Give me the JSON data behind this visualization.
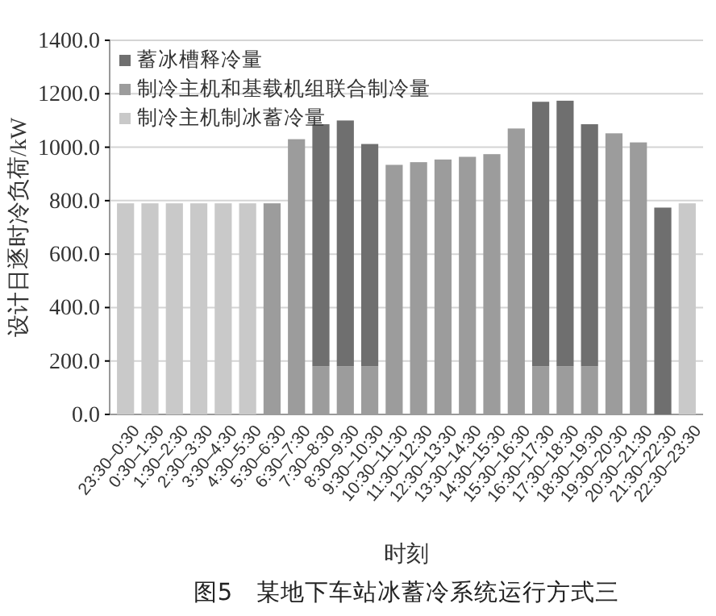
{
  "chart_data": {
    "type": "bar",
    "stacked": true,
    "title": "图5　某地下车站冰蓄冷系统运行方式三",
    "xlabel": "时刻",
    "ylabel": "设计日逐时冷负荷/kW",
    "categories": [
      "23:30–0:30",
      "0:30–1:30",
      "1:30–2:30",
      "2:30–3:30",
      "3:30–4:30",
      "4:30–5:30",
      "5:30–6:30",
      "6:30–7:30",
      "7:30–8:30",
      "8:30–9:30",
      "9:30–10:30",
      "10:30–11:30",
      "11:30–12:30",
      "12:30–13:30",
      "13:30–14:30",
      "14:30–15:30",
      "15:30–16:30",
      "16:30–17:30",
      "17:30–18:30",
      "18:30–19:30",
      "19:30–20:30",
      "20:30–21:30",
      "21:30–22:30",
      "22:30–23:30"
    ],
    "series": [
      {
        "name": "制冷主机制冰蓄冷量",
        "color": "#c9c9c9",
        "values": [
          790,
          790,
          790,
          790,
          790,
          790,
          null,
          null,
          null,
          null,
          null,
          null,
          null,
          null,
          null,
          null,
          null,
          null,
          null,
          null,
          null,
          null,
          null,
          790
        ]
      },
      {
        "name": "制冷主机和基载机组联合制冷量",
        "color": "#9c9c9c",
        "values": [
          null,
          null,
          null,
          null,
          null,
          null,
          790,
          1030,
          180,
          180,
          180,
          934,
          944,
          954,
          964,
          974,
          1070,
          180,
          180,
          180,
          1052,
          1018,
          null,
          null
        ]
      },
      {
        "name": "蓄冰槽释冷量",
        "color": "#6f6f6f",
        "values": [
          null,
          null,
          null,
          null,
          null,
          null,
          null,
          null,
          906,
          920,
          832,
          null,
          null,
          null,
          null,
          null,
          null,
          990,
          994,
          906,
          null,
          null,
          774,
          null
        ]
      }
    ],
    "ylim": [
      0,
      1400
    ],
    "yticks": [
      {
        "value": 0,
        "label": "0.0"
      },
      {
        "value": 200,
        "label": "200.0"
      },
      {
        "value": 400,
        "label": "400.0"
      },
      {
        "value": 600,
        "label": "600.0"
      },
      {
        "value": 800,
        "label": "800.0"
      },
      {
        "value": 1000,
        "label": "1000.0"
      },
      {
        "value": 1200,
        "label": "1200.0"
      },
      {
        "value": 1400,
        "label": "1400.0"
      }
    ],
    "grid": "y",
    "legend": "top left"
  }
}
